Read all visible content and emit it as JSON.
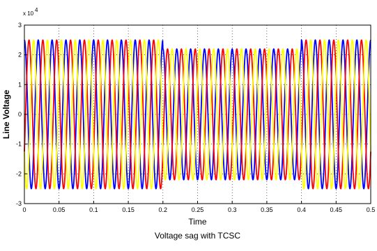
{
  "chart_data": {
    "type": "line",
    "title": "Voltage sag with TCSC",
    "xlabel": "Time",
    "ylabel": "Line Voltage",
    "y_multiplier_label": "x 10",
    "y_multiplier_exponent": "4",
    "xlim": [
      0,
      0.5
    ],
    "ylim": [
      -3,
      3
    ],
    "x_ticks": [
      "0",
      "0.05",
      "0.1",
      "0.15",
      "0.2",
      "0.25",
      "0.3",
      "0.35",
      "0.4",
      "0.45",
      "0.5"
    ],
    "y_ticks": [
      "3",
      "2",
      "1",
      "0",
      "-1",
      "-2",
      "-3"
    ],
    "grid": true,
    "frequency_hz": 50,
    "sag_interval": [
      0.2,
      0.4
    ],
    "series": [
      {
        "color": "#0000ff",
        "phase_deg": 90,
        "segments": [
          {
            "start": 0.0,
            "end": 0.2,
            "amplitude": 2.5
          },
          {
            "start": 0.2,
            "end": 0.4,
            "amplitude": 2.2
          },
          {
            "start": 0.4,
            "end": 0.5,
            "amplitude": 2.5
          }
        ]
      },
      {
        "color": "#ff0000",
        "phase_deg": -30,
        "segments": [
          {
            "start": 0.0,
            "end": 0.2,
            "amplitude": 2.5
          },
          {
            "start": 0.2,
            "end": 0.4,
            "amplitude": 2.2
          },
          {
            "start": 0.4,
            "end": 0.5,
            "amplitude": 2.5
          }
        ]
      },
      {
        "color": "#ffff00",
        "phase_deg": 210,
        "segments": [
          {
            "start": 0.0,
            "end": 0.2,
            "amplitude": 2.5
          },
          {
            "start": 0.2,
            "end": 0.4,
            "amplitude": 2.2
          },
          {
            "start": 0.4,
            "end": 0.5,
            "amplitude": 2.5
          }
        ]
      }
    ]
  }
}
